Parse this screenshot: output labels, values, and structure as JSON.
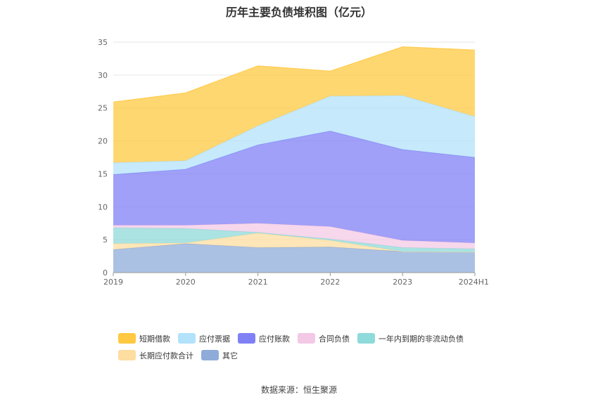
{
  "title": "历年主要负债堆积图（亿元）",
  "source": "数据来源：恒生聚源",
  "chart_data": {
    "type": "area",
    "stacked": true,
    "categories": [
      "2019",
      "2020",
      "2021",
      "2022",
      "2023",
      "2024H1"
    ],
    "ylim": [
      0,
      35
    ],
    "yticks": [
      0,
      5,
      10,
      15,
      20,
      25,
      30,
      35
    ],
    "grid": true,
    "legend_position": "bottom",
    "series": [
      {
        "name": "其它",
        "color": "#8facd9",
        "values": [
          3.5,
          4.4,
          3.8,
          3.9,
          3.2,
          3.1
        ]
      },
      {
        "name": "长期应付款合计",
        "color": "#fddda0",
        "values": [
          0.9,
          0.1,
          2.2,
          1.0,
          0.0,
          0.0
        ]
      },
      {
        "name": "一年内到期的非流动负债",
        "color": "#8fdada",
        "values": [
          2.4,
          2.2,
          0.1,
          0.2,
          0.6,
          0.5
        ]
      },
      {
        "name": "合同负债",
        "color": "#f3c9e6",
        "values": [
          0.4,
          0.5,
          1.4,
          1.9,
          1.1,
          0.9
        ]
      },
      {
        "name": "应付账款",
        "color": "#8080f5",
        "values": [
          7.7,
          8.5,
          11.9,
          14.5,
          13.8,
          13.0
        ]
      },
      {
        "name": "应付票据",
        "color": "#b3e2fb",
        "values": [
          1.8,
          1.3,
          2.9,
          5.3,
          8.2,
          6.2
        ]
      },
      {
        "name": "短期借款",
        "color": "#ffc941",
        "values": [
          9.2,
          10.3,
          9.1,
          3.8,
          7.4,
          10.1
        ]
      }
    ],
    "legend_order": [
      "短期借款",
      "应付票据",
      "应付账款",
      "合同负债",
      "一年内到期的非流动负债",
      "长期应付款合计",
      "其它"
    ]
  }
}
